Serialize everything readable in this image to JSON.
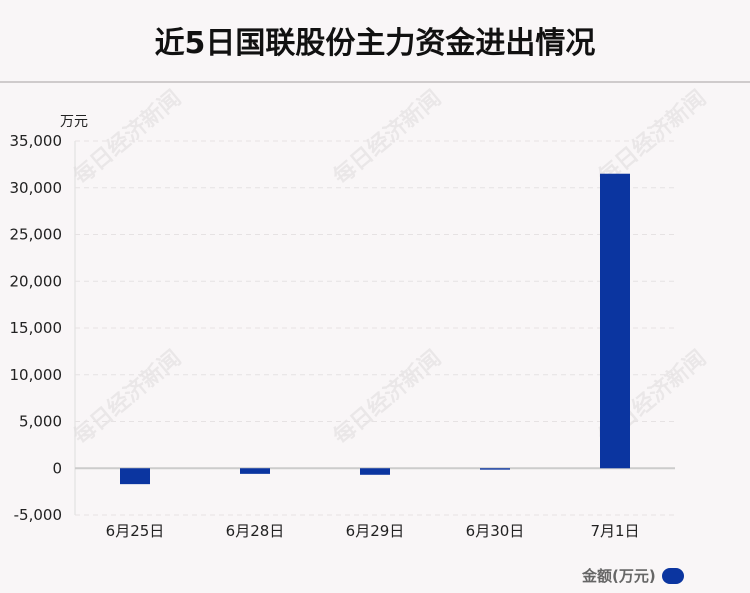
{
  "title": "近5日国联股份主力资金进出情况",
  "watermark": "每日经济新闻",
  "chart_data": {
    "type": "bar",
    "title": "近5日国联股份主力资金进出情况",
    "ylabel": "万元",
    "categories": [
      "6月25日",
      "6月28日",
      "6月29日",
      "6月30日",
      "7月1日"
    ],
    "series": [
      {
        "name": "金额(万元)",
        "values": [
          -1700,
          -600,
          -700,
          -150,
          31500
        ],
        "color": "#0b35a0"
      }
    ],
    "ylim": [
      -5000,
      35000
    ],
    "yticks": [
      -5000,
      0,
      5000,
      10000,
      15000,
      20000,
      25000,
      30000,
      35000
    ],
    "ytick_labels": [
      "-5,000",
      "0",
      "5,000",
      "10,000",
      "15,000",
      "20,000",
      "25,000",
      "30,000",
      "35,000"
    ],
    "grid": true,
    "legend": "bottom-right"
  }
}
